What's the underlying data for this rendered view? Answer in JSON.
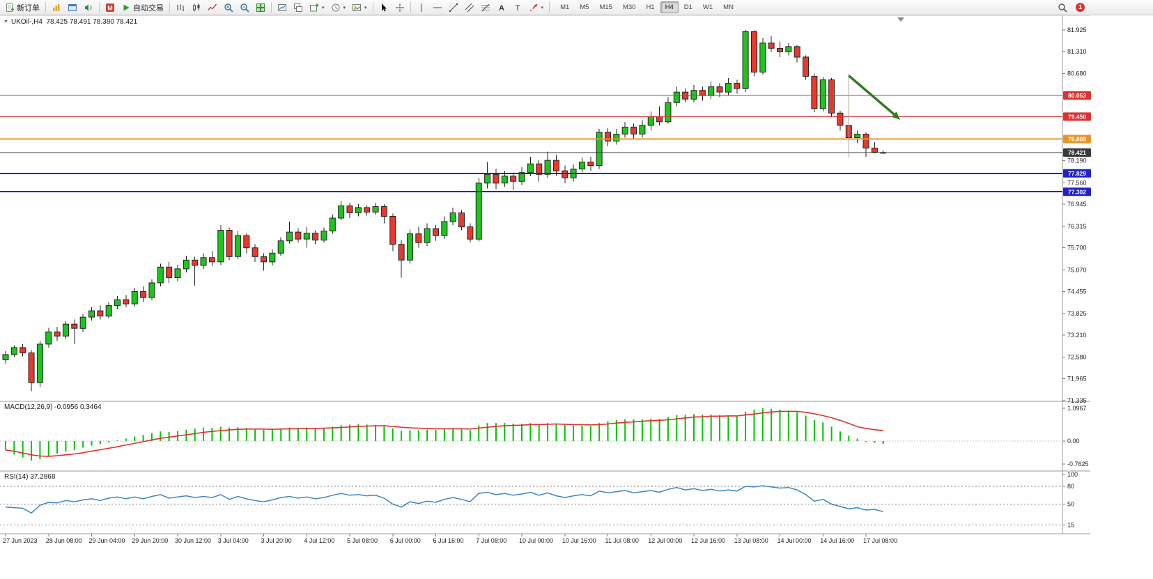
{
  "toolbar": {
    "new_order_label": "新订单",
    "autotrading_label": "自动交易",
    "timeframes": [
      "M1",
      "M5",
      "M15",
      "M30",
      "H1",
      "H4",
      "D1",
      "W1",
      "MN"
    ],
    "active_timeframe": "H4",
    "notification_count": "1",
    "buttons": [
      {
        "name": "new-order-button",
        "icon": "new-order",
        "label_key": "new_order_label"
      },
      {
        "sep": true
      },
      {
        "name": "charts-window-button",
        "icon": "chart-gold"
      },
      {
        "name": "profiles-button",
        "icon": "profiles"
      },
      {
        "name": "sound-alert-button",
        "icon": "sound"
      },
      {
        "sep": true
      },
      {
        "name": "mql5-button",
        "icon": "mql5"
      },
      {
        "name": "autotrading-button",
        "icon": "play-green",
        "label_key": "autotrading_label"
      },
      {
        "sep": true
      },
      {
        "name": "bar-chart-button",
        "icon": "bars"
      },
      {
        "name": "candlestick-chart-button",
        "icon": "candles"
      },
      {
        "name": "line-chart-button",
        "icon": "linechart"
      },
      {
        "name": "zoom-in-button",
        "icon": "zoom-in"
      },
      {
        "name": "zoom-out-button",
        "icon": "zoom-out"
      },
      {
        "name": "tile-windows-button",
        "icon": "tile"
      },
      {
        "sep": true
      },
      {
        "name": "auto-arrange-button",
        "icon": "arrange"
      },
      {
        "name": "cascade-windows-button",
        "icon": "cascade"
      },
      {
        "name": "new-chart-button",
        "icon": "plus-chart",
        "dropdown": true
      },
      {
        "name": "periods-button",
        "icon": "clock",
        "dropdown": true
      },
      {
        "name": "templates-button",
        "icon": "template",
        "dropdown": true
      },
      {
        "sep": true
      },
      {
        "name": "cursor-button",
        "icon": "cursor"
      },
      {
        "name": "crosshair-button",
        "icon": "crosshair"
      },
      {
        "sep": true
      },
      {
        "name": "vertical-line-button",
        "icon": "vline"
      },
      {
        "name": "horizontal-line-button",
        "icon": "hline"
      },
      {
        "name": "trendline-button",
        "icon": "trendline"
      },
      {
        "name": "channel-button",
        "icon": "channel"
      },
      {
        "name": "fibonacci-button",
        "icon": "fibo"
      },
      {
        "name": "text-tool-button",
        "icon": "letter-a"
      },
      {
        "name": "text-label-button",
        "icon": "letter-t"
      },
      {
        "name": "arrows-tool-button",
        "icon": "arrow-shape",
        "dropdown": true
      },
      {
        "sep": true
      }
    ]
  },
  "chart_header": {
    "title_text": "UKOil-,H4  78.425 78.491 78.380 78.421"
  },
  "chart_data": {
    "type": "candlestick",
    "title": "UKOil-,H4",
    "symbol": "UKOil-",
    "timeframe": "H4",
    "ohlc_current": {
      "open": "78.425",
      "high": "78.491",
      "low": "78.380",
      "close": "78.421"
    },
    "ylim": [
      71.335,
      81.925
    ],
    "price_ticks": [
      81.925,
      81.31,
      80.68,
      78.19,
      77.56,
      76.945,
      76.315,
      75.7,
      75.07,
      74.455,
      73.825,
      73.21,
      72.58,
      71.965,
      71.335
    ],
    "x_labels": [
      "27 Jun 2023",
      "28 Jun 08:00",
      "29 Jun 04:00",
      "29 Jun 20:00",
      "30 Jun 12:00",
      "3 Jul 04:00",
      "3 Jul 20:00",
      "4 Jul 12:00",
      "5 Jul 08:00",
      "6 Jul 00:00",
      "6 Jul 16:00",
      "7 Jul 08:00",
      "10 Jul 00:00",
      "10 Jul 16:00",
      "11 Jul 08:00",
      "12 Jul 00:00",
      "12 Jul 16:00",
      "13 Jul 08:00",
      "14 Jul 00:00",
      "14 Jul 16:00",
      "17 Jul 08:00"
    ],
    "candles_per_label": 5,
    "candles": [
      [
        72.5,
        72.75,
        72.4,
        72.65
      ],
      [
        72.65,
        72.92,
        72.58,
        72.85
      ],
      [
        72.85,
        72.95,
        72.6,
        72.7
      ],
      [
        72.7,
        72.78,
        71.6,
        71.85
      ],
      [
        71.85,
        73.05,
        71.72,
        72.95
      ],
      [
        72.95,
        73.42,
        72.85,
        73.3
      ],
      [
        73.3,
        73.45,
        73.05,
        73.18
      ],
      [
        73.18,
        73.6,
        73.1,
        73.52
      ],
      [
        73.52,
        73.65,
        72.95,
        73.4
      ],
      [
        73.4,
        73.8,
        73.3,
        73.72
      ],
      [
        73.72,
        74.0,
        73.62,
        73.9
      ],
      [
        73.9,
        74.05,
        73.65,
        73.75
      ],
      [
        73.75,
        74.15,
        73.68,
        74.05
      ],
      [
        74.05,
        74.32,
        73.95,
        74.22
      ],
      [
        74.22,
        74.35,
        74.0,
        74.1
      ],
      [
        74.1,
        74.55,
        74.02,
        74.45
      ],
      [
        74.45,
        74.6,
        74.15,
        74.28
      ],
      [
        74.28,
        74.8,
        74.2,
        74.7
      ],
      [
        74.7,
        75.25,
        74.6,
        75.15
      ],
      [
        75.15,
        75.3,
        74.7,
        74.85
      ],
      [
        74.85,
        75.22,
        74.75,
        75.1
      ],
      [
        75.1,
        75.48,
        75.0,
        75.35
      ],
      [
        75.35,
        75.45,
        74.62,
        75.2
      ],
      [
        75.2,
        75.55,
        75.1,
        75.42
      ],
      [
        75.42,
        75.6,
        75.18,
        75.3
      ],
      [
        75.3,
        76.35,
        75.22,
        76.2
      ],
      [
        76.2,
        76.28,
        75.35,
        75.45
      ],
      [
        75.45,
        76.18,
        75.38,
        76.05
      ],
      [
        76.05,
        76.12,
        75.55,
        75.7
      ],
      [
        75.7,
        75.8,
        75.3,
        75.45
      ],
      [
        75.45,
        75.55,
        75.05,
        75.3
      ],
      [
        75.3,
        75.65,
        75.2,
        75.55
      ],
      [
        75.55,
        76.0,
        75.48,
        75.9
      ],
      [
        75.9,
        76.45,
        75.82,
        76.15
      ],
      [
        76.15,
        76.25,
        75.85,
        75.95
      ],
      [
        75.95,
        76.3,
        75.7,
        76.12
      ],
      [
        76.12,
        76.2,
        75.8,
        75.92
      ],
      [
        75.92,
        76.28,
        75.85,
        76.18
      ],
      [
        76.18,
        76.65,
        76.1,
        76.55
      ],
      [
        76.55,
        77.05,
        76.48,
        76.9
      ],
      [
        76.9,
        76.98,
        76.55,
        76.7
      ],
      [
        76.7,
        76.95,
        76.6,
        76.85
      ],
      [
        76.85,
        76.92,
        76.62,
        76.72
      ],
      [
        76.72,
        76.98,
        76.65,
        76.88
      ],
      [
        76.88,
        76.95,
        76.4,
        76.6
      ],
      [
        76.6,
        76.68,
        75.6,
        75.8
      ],
      [
        75.8,
        75.92,
        74.85,
        75.35
      ],
      [
        75.35,
        76.22,
        75.25,
        76.1
      ],
      [
        76.1,
        76.3,
        75.7,
        75.85
      ],
      [
        75.85,
        76.4,
        75.75,
        76.25
      ],
      [
        76.25,
        76.35,
        75.9,
        76.05
      ],
      [
        76.05,
        76.6,
        75.95,
        76.45
      ],
      [
        76.45,
        76.85,
        76.35,
        76.7
      ],
      [
        76.7,
        76.78,
        76.2,
        76.3
      ],
      [
        76.3,
        76.4,
        75.85,
        75.95
      ],
      [
        75.95,
        77.7,
        75.88,
        77.55
      ],
      [
        77.55,
        78.15,
        77.4,
        77.8
      ],
      [
        77.8,
        77.95,
        77.38,
        77.55
      ],
      [
        77.55,
        77.9,
        77.45,
        77.75
      ],
      [
        77.75,
        77.85,
        77.35,
        77.6
      ],
      [
        77.6,
        78.0,
        77.5,
        77.85
      ],
      [
        77.85,
        78.3,
        77.75,
        78.1
      ],
      [
        78.1,
        78.2,
        77.6,
        77.8
      ],
      [
        77.8,
        78.45,
        77.7,
        78.2
      ],
      [
        78.2,
        78.35,
        77.75,
        77.9
      ],
      [
        77.9,
        78.05,
        77.55,
        77.7
      ],
      [
        77.7,
        78.08,
        77.6,
        77.95
      ],
      [
        77.95,
        78.28,
        77.85,
        78.15
      ],
      [
        78.15,
        78.3,
        77.9,
        78.05
      ],
      [
        78.05,
        79.1,
        77.95,
        79.0
      ],
      [
        79.0,
        79.12,
        78.6,
        78.75
      ],
      [
        78.75,
        79.1,
        78.65,
        78.95
      ],
      [
        78.95,
        79.3,
        78.85,
        79.15
      ],
      [
        79.15,
        79.25,
        78.8,
        78.95
      ],
      [
        78.95,
        79.35,
        78.85,
        79.2
      ],
      [
        79.2,
        79.6,
        79.05,
        79.45
      ],
      [
        79.45,
        79.75,
        79.2,
        79.3
      ],
      [
        79.3,
        80.0,
        79.25,
        79.85
      ],
      [
        79.85,
        80.3,
        79.75,
        80.15
      ],
      [
        80.15,
        80.25,
        79.85,
        79.95
      ],
      [
        79.95,
        80.35,
        79.85,
        80.2
      ],
      [
        80.2,
        80.3,
        79.9,
        80.05
      ],
      [
        80.05,
        80.45,
        79.95,
        80.3
      ],
      [
        80.3,
        80.4,
        80.0,
        80.15
      ],
      [
        80.15,
        80.55,
        80.05,
        80.4
      ],
      [
        80.4,
        80.5,
        80.1,
        80.25
      ],
      [
        80.25,
        81.925,
        80.15,
        81.88
      ],
      [
        81.88,
        81.92,
        80.6,
        80.72
      ],
      [
        80.72,
        81.7,
        80.65,
        81.55
      ],
      [
        81.55,
        81.75,
        81.3,
        81.4
      ],
      [
        81.4,
        81.6,
        81.15,
        81.3
      ],
      [
        81.3,
        81.55,
        81.2,
        81.45
      ],
      [
        81.45,
        81.5,
        81.0,
        81.15
      ],
      [
        81.15,
        81.2,
        80.5,
        80.6
      ],
      [
        80.6,
        80.68,
        79.58,
        79.68
      ],
      [
        79.68,
        80.58,
        79.6,
        80.5
      ],
      [
        80.5,
        80.55,
        79.45,
        79.55
      ],
      [
        79.55,
        79.62,
        79.05,
        79.2
      ],
      [
        79.2,
        79.28,
        78.75,
        78.85
      ],
      [
        78.85,
        79.05,
        78.7,
        78.95
      ],
      [
        78.95,
        79.0,
        78.3,
        78.55
      ],
      [
        78.55,
        78.72,
        78.4,
        78.43
      ],
      [
        78.425,
        78.491,
        78.38,
        78.421
      ]
    ],
    "levels": [
      {
        "price": 80.053,
        "label": "80.053",
        "type": "resistance-line",
        "color_key": "level_red",
        "width": 1
      },
      {
        "price": 79.45,
        "label": "79.450",
        "type": "resistance-line",
        "color_key": "level_red",
        "width": 1
      },
      {
        "price": 78.809,
        "label": "78.809",
        "type": "pivot-line",
        "color_key": "level_orange",
        "width": 2
      },
      {
        "price": 78.421,
        "label": "78.421",
        "type": "current-price-line",
        "color_key": "price_line",
        "width": 1
      },
      {
        "price": 77.829,
        "label": "77.829",
        "type": "support-line",
        "color_key": "level_blue",
        "width": 2
      },
      {
        "price": 77.302,
        "label": "77.302",
        "type": "support-line",
        "color_key": "level_blue",
        "width": 2
      }
    ],
    "annotations": {
      "trend_arrow": {
        "from_index": 98,
        "from_price": 80.62,
        "to_index": 104,
        "to_price": 79.36
      },
      "vertical_guide": {
        "index": 98,
        "from_price": 80.68,
        "to_price": 78.28
      }
    },
    "indicators": {
      "macd": {
        "label_text": "MACD(12,26,9) -0.0956 0.3464",
        "main_value": "-0.0956",
        "signal_value": "0.3464",
        "axis_ticks": [
          {
            "v": 1.0967,
            "label": "1.0967"
          },
          {
            "v": 0,
            "label": "0.00"
          },
          {
            "v": -0.7625,
            "label": "-0.7625"
          }
        ],
        "histogram": [
          -0.3,
          -0.45,
          -0.55,
          -0.65,
          -0.6,
          -0.5,
          -0.42,
          -0.35,
          -0.3,
          -0.22,
          -0.15,
          -0.1,
          -0.05,
          0.02,
          0.08,
          0.15,
          0.2,
          0.26,
          0.32,
          0.3,
          0.33,
          0.38,
          0.42,
          0.45,
          0.44,
          0.48,
          0.45,
          0.46,
          0.44,
          0.4,
          0.38,
          0.39,
          0.42,
          0.45,
          0.44,
          0.45,
          0.43,
          0.44,
          0.48,
          0.53,
          0.55,
          0.56,
          0.55,
          0.54,
          0.5,
          0.42,
          0.34,
          0.36,
          0.36,
          0.38,
          0.37,
          0.4,
          0.44,
          0.42,
          0.36,
          0.52,
          0.6,
          0.6,
          0.6,
          0.58,
          0.58,
          0.6,
          0.58,
          0.6,
          0.58,
          0.54,
          0.52,
          0.52,
          0.5,
          0.6,
          0.66,
          0.7,
          0.72,
          0.72,
          0.72,
          0.75,
          0.74,
          0.8,
          0.86,
          0.88,
          0.9,
          0.88,
          0.88,
          0.86,
          0.86,
          0.84,
          0.98,
          1.05,
          1.0967,
          1.08,
          1.05,
          1.02,
          0.96,
          0.85,
          0.7,
          0.62,
          0.48,
          0.32,
          0.18,
          0.08,
          -0.02,
          -0.06,
          -0.0956
        ],
        "signal": [
          -0.3,
          -0.34,
          -0.4,
          -0.46,
          -0.5,
          -0.51,
          -0.49,
          -0.46,
          -0.43,
          -0.39,
          -0.34,
          -0.29,
          -0.24,
          -0.19,
          -0.13,
          -0.08,
          -0.02,
          0.04,
          0.09,
          0.13,
          0.17,
          0.21,
          0.25,
          0.29,
          0.32,
          0.35,
          0.37,
          0.39,
          0.4,
          0.4,
          0.4,
          0.39,
          0.4,
          0.41,
          0.41,
          0.42,
          0.42,
          0.43,
          0.44,
          0.45,
          0.47,
          0.49,
          0.5,
          0.51,
          0.51,
          0.49,
          0.46,
          0.44,
          0.43,
          0.42,
          0.41,
          0.41,
          0.41,
          0.41,
          0.4,
          0.43,
          0.46,
          0.49,
          0.51,
          0.52,
          0.53,
          0.55,
          0.55,
          0.56,
          0.57,
          0.56,
          0.55,
          0.55,
          0.54,
          0.55,
          0.57,
          0.6,
          0.62,
          0.64,
          0.66,
          0.68,
          0.69,
          0.71,
          0.74,
          0.77,
          0.8,
          0.81,
          0.83,
          0.83,
          0.84,
          0.84,
          0.87,
          0.9,
          0.94,
          0.97,
          0.99,
          0.99,
          0.99,
          0.96,
          0.91,
          0.85,
          0.78,
          0.69,
          0.59,
          0.48,
          0.42,
          0.38,
          0.3464
        ]
      },
      "rsi": {
        "label_text": "RSI(14) 37.2868",
        "value": "37.2868",
        "axis_ticks": [
          {
            "v": 100,
            "label": "100"
          },
          {
            "v": 80,
            "label": "80"
          },
          {
            "v": 50,
            "label": "50"
          },
          {
            "v": 15,
            "label": "15"
          }
        ],
        "levels": [
          80,
          50,
          15
        ],
        "values": [
          45,
          44,
          43,
          35,
          48,
          53,
          52,
          56,
          54,
          57,
          59,
          56,
          60,
          62,
          59,
          62,
          59,
          63,
          66,
          60,
          62,
          64,
          61,
          63,
          61,
          66,
          58,
          63,
          59,
          56,
          54,
          57,
          61,
          63,
          60,
          62,
          59,
          61,
          65,
          68,
          65,
          66,
          64,
          65,
          60,
          50,
          45,
          54,
          51,
          55,
          53,
          58,
          61,
          58,
          54,
          68,
          70,
          66,
          68,
          65,
          67,
          70,
          65,
          69,
          64,
          61,
          64,
          66,
          64,
          72,
          69,
          71,
          73,
          69,
          71,
          73,
          70,
          75,
          78,
          74,
          76,
          73,
          75,
          72,
          74,
          72,
          80,
          79,
          81,
          79,
          77,
          78,
          74,
          66,
          55,
          58,
          50,
          46,
          42,
          44,
          40,
          41,
          37.2868
        ]
      }
    }
  },
  "colors": {
    "bull": "#1fc41f",
    "bear": "#e8392e",
    "candle_outline": "#222222",
    "macd_hist": "#00c400",
    "macd_signal": "#e03131",
    "rsi_line": "#3d85c8",
    "level_red": "#e03131",
    "level_blue": "#2222cc",
    "level_orange": "#e8942a",
    "price_line": "#3a3a3a",
    "arrow_green": "#357a21"
  }
}
